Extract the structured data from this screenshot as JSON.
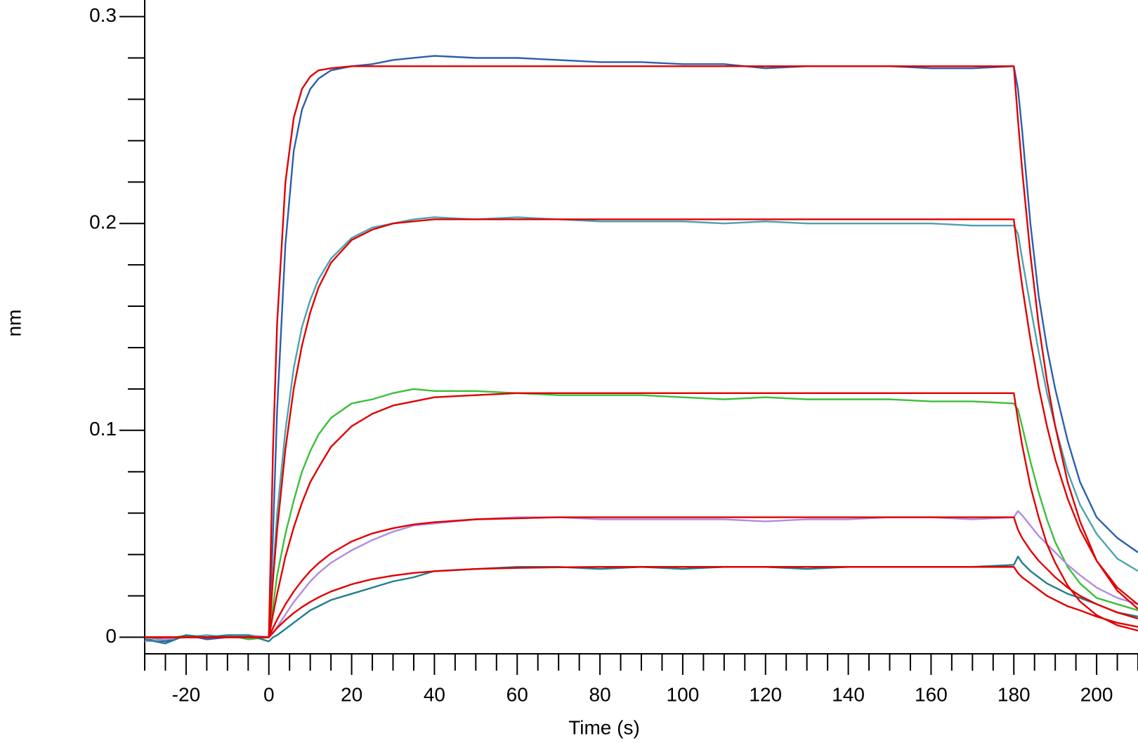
{
  "chart_data": {
    "type": "line",
    "x_label": "Time (s)",
    "y_label": "nm",
    "x": [
      -30,
      -25,
      -20,
      -15,
      -10,
      -5,
      0,
      1,
      2,
      4,
      6,
      8,
      10,
      12,
      15,
      20,
      25,
      30,
      35,
      40,
      50,
      60,
      70,
      80,
      90,
      100,
      110,
      120,
      130,
      140,
      150,
      160,
      170,
      180,
      181,
      182,
      184,
      186,
      188,
      190,
      193,
      196,
      200,
      205,
      210
    ],
    "xlim": [
      -30,
      210
    ],
    "ylim": [
      -0.008,
      0.308
    ],
    "xticks": [
      -20,
      0,
      20,
      40,
      60,
      80,
      100,
      120,
      140,
      160,
      180,
      200
    ],
    "xticks_minor": [
      -30,
      -25,
      -15,
      -10,
      -5,
      5,
      10,
      15,
      25,
      30,
      35,
      45,
      50,
      55,
      65,
      70,
      75,
      85,
      90,
      95,
      105,
      110,
      115,
      125,
      130,
      135,
      145,
      150,
      155,
      165,
      170,
      175,
      185,
      190,
      195,
      205,
      210
    ],
    "yticks": [
      0,
      0.1,
      0.2,
      0.3
    ],
    "yticks_minor": [
      0.02,
      0.04,
      0.06,
      0.08,
      0.12,
      0.14,
      0.16,
      0.18,
      0.22,
      0.24,
      0.26,
      0.28
    ],
    "series": [
      {
        "color": "#2b5fad",
        "values": [
          -0.001,
          -0.002,
          0.001,
          -0.001,
          0,
          0.001,
          0,
          0.05,
          0.11,
          0.19,
          0.235,
          0.255,
          0.265,
          0.27,
          0.274,
          0.276,
          0.277,
          0.279,
          0.28,
          0.281,
          0.28,
          0.28,
          0.279,
          0.278,
          0.278,
          0.277,
          0.277,
          0.275,
          0.276,
          0.276,
          0.276,
          0.275,
          0.275,
          0.276,
          0.265,
          0.245,
          0.2,
          0.165,
          0.14,
          0.12,
          0.095,
          0.075,
          0.058,
          0.048,
          0.041
        ]
      },
      {
        "color": "#4aa3b0",
        "values": [
          0,
          -0.001,
          0,
          0.001,
          0,
          0.001,
          0,
          0.03,
          0.06,
          0.1,
          0.13,
          0.15,
          0.163,
          0.173,
          0.183,
          0.193,
          0.198,
          0.2,
          0.202,
          0.203,
          0.202,
          0.203,
          0.202,
          0.201,
          0.201,
          0.201,
          0.2,
          0.201,
          0.2,
          0.2,
          0.2,
          0.2,
          0.199,
          0.199,
          0.195,
          0.183,
          0.16,
          0.138,
          0.118,
          0.102,
          0.08,
          0.064,
          0.05,
          0.038,
          0.032
        ]
      },
      {
        "color": "#3bbf3b",
        "values": [
          -0.002,
          -0.001,
          0.001,
          0,
          0.001,
          -0.001,
          0,
          0.015,
          0.03,
          0.05,
          0.066,
          0.08,
          0.09,
          0.098,
          0.106,
          0.113,
          0.115,
          0.118,
          0.12,
          0.119,
          0.119,
          0.118,
          0.117,
          0.117,
          0.117,
          0.116,
          0.115,
          0.116,
          0.115,
          0.115,
          0.115,
          0.114,
          0.114,
          0.113,
          0.11,
          0.102,
          0.085,
          0.07,
          0.057,
          0.046,
          0.034,
          0.026,
          0.019,
          0.016,
          0.013
        ]
      },
      {
        "color": "#b08ce0",
        "values": [
          -0.002,
          -0.001,
          0,
          0,
          0,
          0.001,
          0,
          0.002,
          0.005,
          0.011,
          0.017,
          0.022,
          0.027,
          0.031,
          0.036,
          0.042,
          0.047,
          0.051,
          0.054,
          0.055,
          0.057,
          0.058,
          0.058,
          0.057,
          0.057,
          0.057,
          0.057,
          0.056,
          0.057,
          0.057,
          0.058,
          0.058,
          0.057,
          0.058,
          0.061,
          0.059,
          0.054,
          0.049,
          0.045,
          0.041,
          0.035,
          0.03,
          0.024,
          0.019,
          0.016
        ]
      },
      {
        "color": "#1f7f8a",
        "values": [
          -0.001,
          -0.003,
          0.001,
          0,
          0.001,
          0.001,
          -0.002,
          0,
          0.001,
          0.004,
          0.007,
          0.01,
          0.013,
          0.015,
          0.018,
          0.021,
          0.024,
          0.027,
          0.029,
          0.032,
          0.033,
          0.034,
          0.034,
          0.033,
          0.034,
          0.033,
          0.034,
          0.034,
          0.033,
          0.034,
          0.034,
          0.034,
          0.034,
          0.035,
          0.039,
          0.036,
          0.032,
          0.029,
          0.026,
          0.024,
          0.021,
          0.019,
          0.016,
          0.012,
          0.01
        ]
      },
      {
        "color": "#e00000",
        "values": [
          0,
          0,
          0,
          0,
          0,
          0,
          0,
          0.091,
          0.152,
          0.22,
          0.251,
          0.265,
          0.271,
          0.274,
          0.275,
          0.276,
          0.276,
          0.276,
          0.276,
          0.276,
          0.276,
          0.276,
          0.276,
          0.276,
          0.276,
          0.276,
          0.276,
          0.276,
          0.276,
          0.276,
          0.276,
          0.276,
          0.276,
          0.276,
          0.25,
          0.226,
          0.185,
          0.151,
          0.124,
          0.102,
          0.075,
          0.056,
          0.037,
          0.0225,
          0.0137
        ]
      },
      {
        "color": "#e00000",
        "values": [
          0,
          0,
          0,
          0,
          0,
          0,
          0,
          0.028,
          0.052,
          0.091,
          0.12,
          0.141,
          0.157,
          0.169,
          0.181,
          0.192,
          0.197,
          0.2,
          0.201,
          0.202,
          0.202,
          0.202,
          0.202,
          0.202,
          0.202,
          0.202,
          0.202,
          0.202,
          0.202,
          0.202,
          0.202,
          0.202,
          0.202,
          0.202,
          0.185,
          0.17,
          0.144,
          0.121,
          0.102,
          0.086,
          0.067,
          0.052,
          0.037,
          0.024,
          0.0158
        ]
      },
      {
        "color": "#e00000",
        "values": [
          0,
          0,
          0,
          0,
          0,
          0,
          0,
          0.011,
          0.021,
          0.039,
          0.053,
          0.065,
          0.075,
          0.082,
          0.092,
          0.102,
          0.108,
          0.112,
          0.114,
          0.116,
          0.117,
          0.118,
          0.118,
          0.118,
          0.118,
          0.118,
          0.118,
          0.118,
          0.118,
          0.118,
          0.118,
          0.118,
          0.118,
          0.118,
          0.105,
          0.093,
          0.073,
          0.058,
          0.045,
          0.036,
          0.025,
          0.0173,
          0.0107,
          0.0058,
          0.0032
        ]
      },
      {
        "color": "#e00000",
        "values": [
          0,
          0,
          0,
          0,
          0,
          0,
          0,
          0.0045,
          0.0086,
          0.0159,
          0.0221,
          0.0274,
          0.032,
          0.0358,
          0.0405,
          0.0463,
          0.0502,
          0.0527,
          0.0545,
          0.0556,
          0.057,
          0.0575,
          0.058,
          0.058,
          0.058,
          0.058,
          0.058,
          0.058,
          0.058,
          0.058,
          0.058,
          0.058,
          0.058,
          0.058,
          0.052,
          0.048,
          0.042,
          0.037,
          0.033,
          0.029,
          0.024,
          0.02,
          0.016,
          0.012,
          0.009
        ]
      },
      {
        "color": "#e00000",
        "values": [
          0,
          0,
          0,
          0,
          0,
          0,
          0,
          0.0023,
          0.0045,
          0.0083,
          0.0117,
          0.0146,
          0.0171,
          0.0193,
          0.0221,
          0.0256,
          0.0281,
          0.0298,
          0.0311,
          0.0319,
          0.033,
          0.0335,
          0.0338,
          0.034,
          0.034,
          0.034,
          0.034,
          0.034,
          0.034,
          0.034,
          0.034,
          0.034,
          0.034,
          0.034,
          0.031,
          0.029,
          0.026,
          0.023,
          0.02,
          0.018,
          0.015,
          0.013,
          0.01,
          0.007,
          0.005
        ]
      }
    ]
  }
}
